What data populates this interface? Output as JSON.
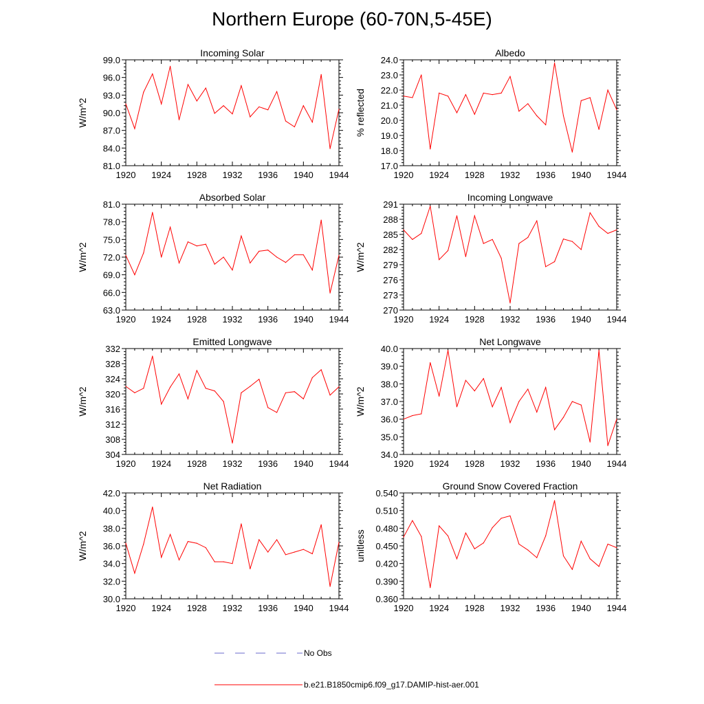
{
  "title": "Northern Europe (60-70N,5-45E)",
  "line_color": "#ff0000",
  "obs_color": "#6a6acd",
  "legend": {
    "obs_label": "No Obs",
    "model_label": "b.e21.B1850cmip6.f09_g17.DAMIP-hist-aer.001"
  },
  "chart_data": [
    {
      "type": "line",
      "title": "Incoming Solar",
      "ylabel": "W/m^2",
      "xlim": [
        1920,
        1944
      ],
      "ylim": [
        81.0,
        99.0
      ],
      "xticks": [
        "1920",
        "1924",
        "1928",
        "1932",
        "1936",
        "1940",
        "1944"
      ],
      "yticks": [
        "81.0",
        "84.0",
        "87.0",
        "90.0",
        "93.0",
        "96.0",
        "99.0"
      ],
      "x": [
        1920,
        1921,
        1922,
        1923,
        1924,
        1925,
        1926,
        1927,
        1928,
        1929,
        1930,
        1931,
        1932,
        1933,
        1934,
        1935,
        1936,
        1937,
        1938,
        1939,
        1940,
        1941,
        1942,
        1943,
        1944
      ],
      "values": [
        91.5,
        87.3,
        93.5,
        96.6,
        91.5,
        97.9,
        88.8,
        94.8,
        92.0,
        94.2,
        89.9,
        91.2,
        89.8,
        94.6,
        89.3,
        91.0,
        90.5,
        93.6,
        88.6,
        87.6,
        91.2,
        88.4,
        96.5,
        83.9,
        90.6
      ]
    },
    {
      "type": "line",
      "title": "Albedo",
      "ylabel": "% reflected",
      "xlim": [
        1920,
        1944
      ],
      "ylim": [
        17.0,
        24.0
      ],
      "xticks": [
        "1920",
        "1924",
        "1928",
        "1932",
        "1936",
        "1940",
        "1944"
      ],
      "yticks": [
        "17.0",
        "18.0",
        "19.0",
        "20.0",
        "21.0",
        "22.0",
        "23.0",
        "24.0"
      ],
      "x": [
        1920,
        1921,
        1922,
        1923,
        1924,
        1925,
        1926,
        1927,
        1928,
        1929,
        1930,
        1931,
        1932,
        1933,
        1934,
        1935,
        1936,
        1937,
        1938,
        1939,
        1940,
        1941,
        1942,
        1943,
        1944
      ],
      "values": [
        21.6,
        21.5,
        23.0,
        18.1,
        21.8,
        21.6,
        20.5,
        21.7,
        20.4,
        21.8,
        21.7,
        21.8,
        22.9,
        20.6,
        21.1,
        20.3,
        19.7,
        23.8,
        20.3,
        17.9,
        21.3,
        21.5,
        19.4,
        22.0,
        20.7
      ]
    },
    {
      "type": "line",
      "title": "Absorbed Solar",
      "ylabel": "W/m^2",
      "xlim": [
        1920,
        1944
      ],
      "ylim": [
        63.0,
        81.0
      ],
      "xticks": [
        "1920",
        "1924",
        "1928",
        "1932",
        "1936",
        "1940",
        "1944"
      ],
      "yticks": [
        "63.0",
        "66.0",
        "69.0",
        "72.0",
        "75.0",
        "78.0",
        "81.0"
      ],
      "x": [
        1920,
        1921,
        1922,
        1923,
        1924,
        1925,
        1926,
        1927,
        1928,
        1929,
        1930,
        1931,
        1932,
        1933,
        1934,
        1935,
        1936,
        1937,
        1938,
        1939,
        1940,
        1941,
        1942,
        1943,
        1944
      ],
      "values": [
        72.3,
        69.0,
        72.7,
        79.6,
        72.0,
        77.1,
        71.0,
        74.6,
        73.9,
        74.2,
        70.8,
        72.0,
        69.8,
        75.6,
        71.0,
        73.0,
        73.2,
        72.0,
        71.1,
        72.4,
        72.4,
        69.8,
        78.3,
        65.9,
        72.3
      ]
    },
    {
      "type": "line",
      "title": "Incoming Longwave",
      "ylabel": "W/m^2",
      "xlim": [
        1920,
        1944
      ],
      "ylim": [
        270,
        291
      ],
      "xticks": [
        "1920",
        "1924",
        "1928",
        "1932",
        "1936",
        "1940",
        "1944"
      ],
      "yticks": [
        "270",
        "273",
        "276",
        "279",
        "282",
        "285",
        "288",
        "291"
      ],
      "x": [
        1920,
        1921,
        1922,
        1923,
        1924,
        1925,
        1926,
        1927,
        1928,
        1929,
        1930,
        1931,
        1932,
        1933,
        1934,
        1935,
        1936,
        1937,
        1938,
        1939,
        1940,
        1941,
        1942,
        1943,
        1944
      ],
      "values": [
        285.9,
        284.0,
        285.2,
        290.6,
        280.0,
        281.8,
        288.7,
        280.6,
        288.7,
        283.2,
        284.0,
        280.3,
        271.4,
        283.2,
        284.4,
        287.7,
        278.6,
        279.6,
        284.1,
        283.6,
        282.0,
        289.3,
        286.6,
        285.2,
        285.9
      ]
    },
    {
      "type": "line",
      "title": "Emitted Longwave",
      "ylabel": "W/m^2",
      "xlim": [
        1920,
        1944
      ],
      "ylim": [
        304,
        332
      ],
      "xticks": [
        "1920",
        "1924",
        "1928",
        "1932",
        "1936",
        "1940",
        "1944"
      ],
      "yticks": [
        "304",
        "308",
        "312",
        "316",
        "320",
        "324",
        "328",
        "332"
      ],
      "x": [
        1920,
        1921,
        1922,
        1923,
        1924,
        1925,
        1926,
        1927,
        1928,
        1929,
        1930,
        1931,
        1932,
        1933,
        1934,
        1935,
        1936,
        1937,
        1938,
        1939,
        1940,
        1941,
        1942,
        1943,
        1944
      ],
      "values": [
        322.0,
        320.3,
        321.5,
        330.0,
        317.3,
        321.8,
        325.3,
        318.7,
        326.2,
        321.5,
        320.8,
        318.0,
        307.0,
        320.3,
        322.0,
        323.9,
        316.4,
        315.1,
        320.3,
        320.6,
        318.7,
        324.3,
        326.4,
        319.7,
        321.9
      ]
    },
    {
      "type": "line",
      "title": "Net Longwave",
      "ylabel": "W/m^2",
      "xlim": [
        1920,
        1944
      ],
      "ylim": [
        34.0,
        40.0
      ],
      "xticks": [
        "1920",
        "1924",
        "1928",
        "1932",
        "1936",
        "1940",
        "1944"
      ],
      "yticks": [
        "34.0",
        "35.0",
        "36.0",
        "37.0",
        "38.0",
        "39.0",
        "40.0"
      ],
      "x": [
        1920,
        1921,
        1922,
        1923,
        1924,
        1925,
        1926,
        1927,
        1928,
        1929,
        1930,
        1931,
        1932,
        1933,
        1934,
        1935,
        1936,
        1937,
        1938,
        1939,
        1940,
        1941,
        1942,
        1943,
        1944
      ],
      "values": [
        36.0,
        36.2,
        36.3,
        39.2,
        37.3,
        39.9,
        36.7,
        38.2,
        37.6,
        38.3,
        36.7,
        37.8,
        35.8,
        37.0,
        37.7,
        36.4,
        37.8,
        35.4,
        36.1,
        37.0,
        36.8,
        34.7,
        39.9,
        34.5,
        36.0
      ]
    },
    {
      "type": "line",
      "title": "Net Radiation",
      "ylabel": "W/m^2",
      "xlim": [
        1920,
        1944
      ],
      "ylim": [
        30.0,
        42.0
      ],
      "xticks": [
        "1920",
        "1924",
        "1928",
        "1932",
        "1936",
        "1940",
        "1944"
      ],
      "yticks": [
        "30.0",
        "32.0",
        "34.0",
        "36.0",
        "38.0",
        "40.0",
        "42.0"
      ],
      "x": [
        1920,
        1921,
        1922,
        1923,
        1924,
        1925,
        1926,
        1927,
        1928,
        1929,
        1930,
        1931,
        1932,
        1933,
        1934,
        1935,
        1936,
        1937,
        1938,
        1939,
        1940,
        1941,
        1942,
        1943,
        1944
      ],
      "values": [
        36.3,
        32.9,
        36.2,
        40.4,
        34.7,
        37.3,
        34.4,
        36.5,
        36.3,
        35.8,
        34.2,
        34.2,
        34.0,
        38.5,
        33.4,
        36.7,
        35.3,
        36.7,
        35.0,
        35.3,
        35.6,
        35.1,
        38.4,
        31.4,
        36.4
      ]
    },
    {
      "type": "line",
      "title": "Ground Snow Covered Fraction",
      "ylabel": "unitless",
      "xlim": [
        1920,
        1944
      ],
      "ylim": [
        0.36,
        0.54
      ],
      "xticks": [
        "1920",
        "1924",
        "1928",
        "1932",
        "1936",
        "1940",
        "1944"
      ],
      "yticks": [
        "0.360",
        "0.390",
        "0.420",
        "0.450",
        "0.480",
        "0.510",
        "0.540"
      ],
      "x": [
        1920,
        1921,
        1922,
        1923,
        1924,
        1925,
        1926,
        1927,
        1928,
        1929,
        1930,
        1931,
        1932,
        1933,
        1934,
        1935,
        1936,
        1937,
        1938,
        1939,
        1940,
        1941,
        1942,
        1943,
        1944
      ],
      "values": [
        0.465,
        0.493,
        0.466,
        0.379,
        0.484,
        0.467,
        0.428,
        0.472,
        0.445,
        0.455,
        0.481,
        0.497,
        0.501,
        0.453,
        0.443,
        0.43,
        0.467,
        0.527,
        0.433,
        0.41,
        0.458,
        0.428,
        0.415,
        0.453,
        0.447
      ]
    }
  ]
}
